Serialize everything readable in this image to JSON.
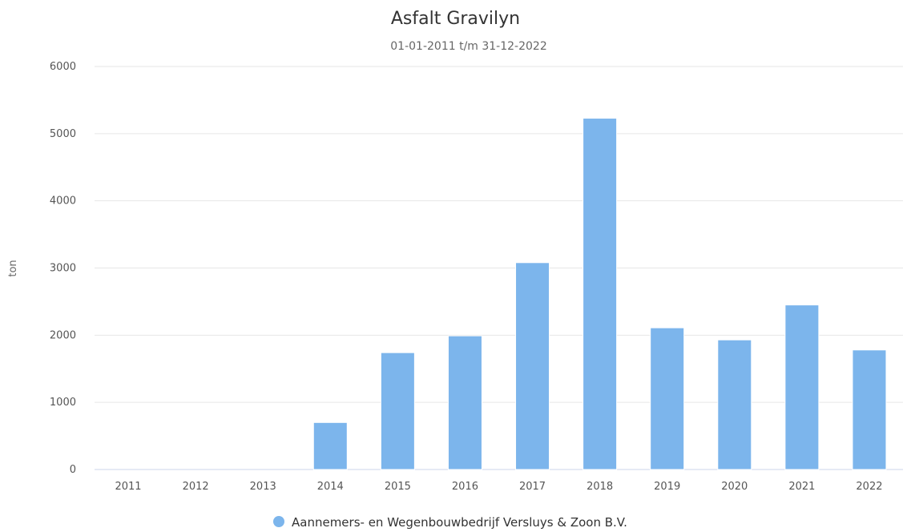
{
  "chart_data": {
    "type": "bar",
    "title": "Asfalt Gravilyn",
    "subtitle": "01-01-2011 t/m 31-12-2022",
    "xlabel": "",
    "ylabel": "ton",
    "ylim": [
      0,
      6000
    ],
    "yticks": [
      "0",
      "1000",
      "2000",
      "3000",
      "4000",
      "5000",
      "6000"
    ],
    "grid": true,
    "legend_position": "bottom-center",
    "categories": [
      "2011",
      "2012",
      "2013",
      "2014",
      "2015",
      "2016",
      "2017",
      "2018",
      "2019",
      "2020",
      "2021",
      "2022"
    ],
    "series": [
      {
        "name": "Aannemers- en Wegenbouwbedrijf Versluys & Zoon B.V.",
        "color": "#7cb5ec",
        "values": [
          0,
          0,
          0,
          700,
          1740,
          1990,
          3080,
          5230,
          2110,
          1930,
          2450,
          1780
        ]
      }
    ]
  }
}
